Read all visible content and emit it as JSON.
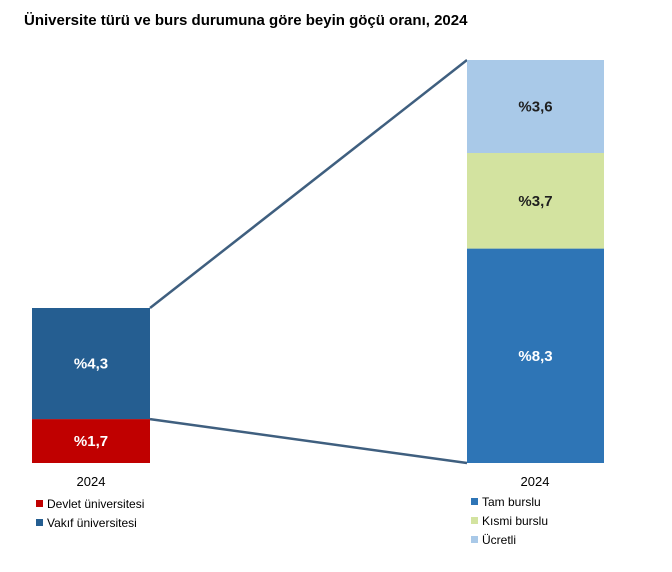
{
  "chart_data": {
    "type": "bar",
    "title": "Üniversite türü ve burs durumuna göre beyin göçü oranı, 2024",
    "left_bar": {
      "category": "2024",
      "series": [
        {
          "name": "Devlet üniversitesi",
          "value": 1.7,
          "label": "%1,7",
          "color": "#c00000"
        },
        {
          "name": "Vakıf üniversitesi",
          "value": 4.3,
          "label": "%4,3",
          "color": "#255e91"
        }
      ]
    },
    "right_bar": {
      "category": "2024",
      "series": [
        {
          "name": "Tam burslu",
          "value": 8.3,
          "label": "%8,3",
          "color": "#2e75b6"
        },
        {
          "name": "Kısmi burslu",
          "value": 3.7,
          "label": "%3,7",
          "color": "#d3e3a0"
        },
        {
          "name": "Ücretli",
          "value": 3.6,
          "label": "%3,6",
          "color": "#a9c9e8"
        }
      ]
    },
    "connector_color": "#3f5f7f"
  }
}
